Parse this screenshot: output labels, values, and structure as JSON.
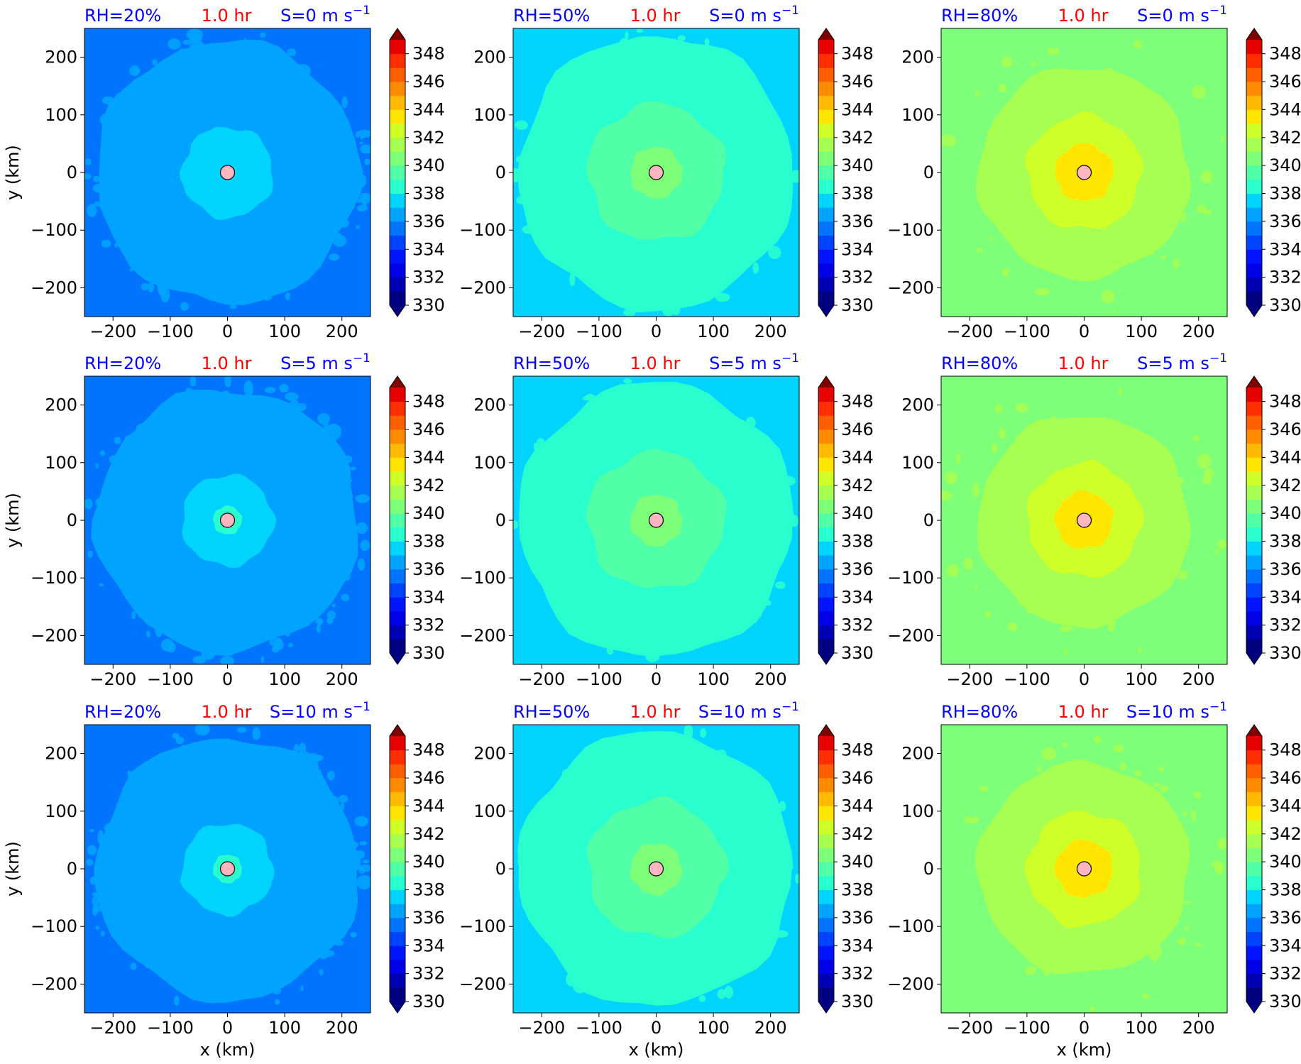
{
  "chart_data": {
    "type": "heatmap",
    "description_units": "filled contours; x and y in km",
    "xlabel": "x (km)",
    "ylabel": "y (km)",
    "xlim": [
      -250,
      250
    ],
    "ylim": [
      -250,
      250
    ],
    "xticks": [
      -200,
      -100,
      0,
      100,
      200
    ],
    "yticks": [
      -200,
      -100,
      0,
      100,
      200
    ],
    "tick_labels": [
      "−200",
      "−100",
      "0",
      "100",
      "200"
    ],
    "colorbar": {
      "min": 330,
      "max": 349,
      "step": 1,
      "tick_values": [
        330,
        332,
        334,
        336,
        338,
        340,
        342,
        344,
        346,
        348
      ],
      "extend": "both",
      "colors": [
        "#000080",
        "#0000b3",
        "#0000e6",
        "#0014ff",
        "#0044ff",
        "#0074ff",
        "#00a4ff",
        "#00d4ff",
        "#29ffce",
        "#51ffa6",
        "#7dff7a",
        "#a6ff51",
        "#ceff29",
        "#ffe600",
        "#ffb900",
        "#ff8c00",
        "#ff5f00",
        "#ff2d00",
        "#e60000",
        "#b30000"
      ],
      "under_color": "#000080",
      "over_color": "#800000"
    },
    "time_label": "1.0 hr",
    "time_color": "#ff0000",
    "label_color": "#0000ff",
    "center_marker": {
      "x": 0,
      "y": 0,
      "fill": "#ffb6c1",
      "edge": "#000000"
    },
    "panels": [
      {
        "rh": "RH=20%",
        "s": "S=0 m s",
        "sup": "−1",
        "levels": [
          {
            "r": 1000,
            "v": 335.5
          },
          {
            "r": 230,
            "v": 336.5
          },
          {
            "r": 80,
            "v": 337.5
          }
        ],
        "noise": 0.9
      },
      {
        "rh": "RH=50%",
        "s": "S=0 m s",
        "sup": "−1",
        "levels": [
          {
            "r": 1000,
            "v": 337.5
          },
          {
            "r": 240,
            "v": 338.5
          },
          {
            "r": 120,
            "v": 339.5
          },
          {
            "r": 45,
            "v": 340.5
          }
        ],
        "noise": 0.5
      },
      {
        "rh": "RH=80%",
        "s": "S=0 m s",
        "sup": "−1",
        "levels": [
          {
            "r": 1000,
            "v": 340.5
          },
          {
            "r": 185,
            "v": 341.5
          },
          {
            "r": 100,
            "v": 342.5
          },
          {
            "r": 50,
            "v": 343.5
          }
        ],
        "noise": 0.2
      },
      {
        "rh": "RH=20%",
        "s": "S=5 m s",
        "sup": "−1",
        "levels": [
          {
            "r": 1000,
            "v": 335.5
          },
          {
            "r": 230,
            "v": 336.5
          },
          {
            "r": 80,
            "v": 337.5
          },
          {
            "r": 25,
            "v": 338.5
          }
        ],
        "noise": 0.9
      },
      {
        "rh": "RH=50%",
        "s": "S=5 m s",
        "sup": "−1",
        "levels": [
          {
            "r": 1000,
            "v": 337.5
          },
          {
            "r": 240,
            "v": 338.5
          },
          {
            "r": 120,
            "v": 339.5
          },
          {
            "r": 45,
            "v": 340.5
          }
        ],
        "noise": 0.5
      },
      {
        "rh": "RH=80%",
        "s": "S=5 m s",
        "sup": "−1",
        "levels": [
          {
            "r": 1000,
            "v": 340.5
          },
          {
            "r": 185,
            "v": 341.5
          },
          {
            "r": 100,
            "v": 342.5
          },
          {
            "r": 50,
            "v": 343.5
          }
        ],
        "noise": 0.2
      },
      {
        "rh": "RH=20%",
        "s": "S=10 m s",
        "sup": "−1",
        "levels": [
          {
            "r": 1000,
            "v": 335.5
          },
          {
            "r": 230,
            "v": 336.5
          },
          {
            "r": 80,
            "v": 337.5
          },
          {
            "r": 25,
            "v": 338.5
          }
        ],
        "noise": 0.9
      },
      {
        "rh": "RH=50%",
        "s": "S=10 m s",
        "sup": "−1",
        "levels": [
          {
            "r": 1000,
            "v": 337.5
          },
          {
            "r": 240,
            "v": 338.5
          },
          {
            "r": 120,
            "v": 339.5
          },
          {
            "r": 45,
            "v": 340.5
          }
        ],
        "noise": 0.5
      },
      {
        "rh": "RH=80%",
        "s": "S=10 m s",
        "sup": "−1",
        "levels": [
          {
            "r": 1000,
            "v": 340.5
          },
          {
            "r": 185,
            "v": 341.5
          },
          {
            "r": 100,
            "v": 342.5
          },
          {
            "r": 50,
            "v": 343.5
          }
        ],
        "noise": 0.2
      }
    ]
  }
}
